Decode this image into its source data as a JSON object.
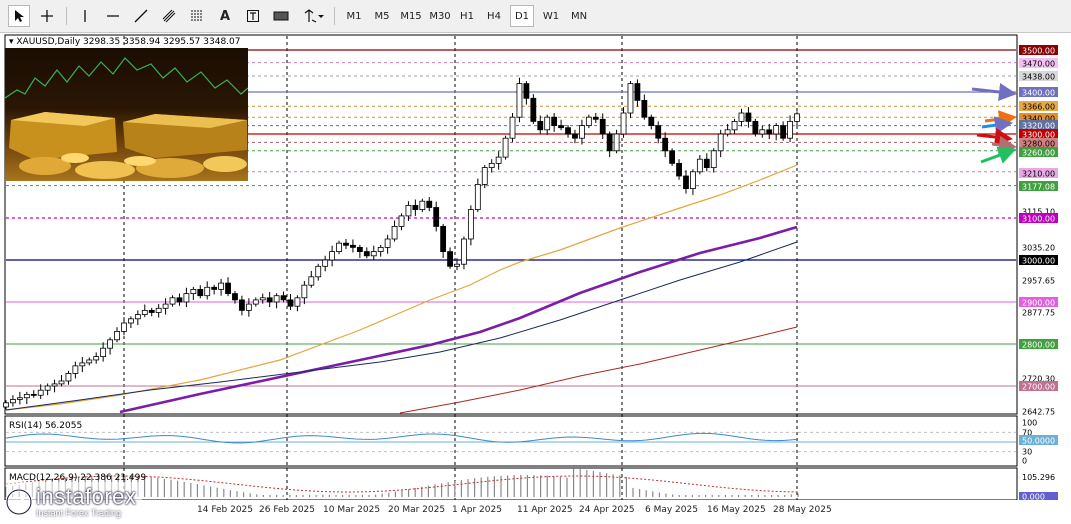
{
  "toolbar": {
    "timeframes": [
      "M1",
      "M5",
      "M15",
      "M30",
      "H1",
      "H4",
      "D1",
      "W1",
      "MN"
    ],
    "selected_timeframe": "D1",
    "text_tool_label": "A"
  },
  "chart": {
    "header": "XAUUSD,Daily  3298.35 3358.94 3295.57 3348.07",
    "price_axis_labels": [
      "3500.00",
      "3470.00",
      "3438.00",
      "3400.00",
      "3366.00",
      "3340.00",
      "3320.00",
      "3300.00",
      "3280.00",
      "3260.00",
      "3210.00",
      "3177.08",
      "3115.10",
      "3100.00",
      "3035.20",
      "3000.00",
      "2957.65",
      "2900.00",
      "2877.75",
      "2800.00",
      "2720.30",
      "2700.00",
      "2642.75"
    ],
    "date_labels": [
      "14 Feb 2025",
      "26 Feb 2025",
      "10 Mar 2025",
      "20 Mar 2025",
      "1 Apr 2025",
      "11 Apr 2025",
      "24 Apr 2025",
      "6 May 2025",
      "16 May 2025",
      "28 May 2025"
    ],
    "colors": {
      "bull_candle": "#ffffff",
      "bear_candle": "#000000",
      "ma_fast": "#e3a73a",
      "ma_mid": "#7a1ea8",
      "ma_slow": "#1a2a5a",
      "ma_long": "#a8281e",
      "resistance": "#8b0000",
      "support_green": "#228b22",
      "magenta": "#c000c0",
      "arrow_blue": "#7070c0",
      "arrow_orange": "#f07010",
      "arrow_red": "#d01010",
      "arrow_green": "#20c060"
    }
  },
  "rsi": {
    "label": "RSI(14) 56.2055",
    "axis_labels": [
      "100",
      "70",
      "50.0000",
      "30",
      "0"
    ]
  },
  "macd": {
    "label": "MACD(12,26,9) 22.386 21.499",
    "axis_labels": [
      "105.296",
      "0.000"
    ]
  },
  "brand": {
    "name": "instaforex",
    "tagline": "Instant Forex Trading"
  },
  "chart_data": {
    "type": "candlestick",
    "x": [
      "2025-02-14",
      "2025-02-26",
      "2025-03-10",
      "2025-03-20",
      "2025-04-01",
      "2025-04-11",
      "2025-04-24",
      "2025-05-06",
      "2025-05-16",
      "2025-05-28"
    ],
    "last_bar": {
      "open": 3298.35,
      "high": 3358.94,
      "low": 3295.57,
      "close": 3348.07
    },
    "horizontal_levels": [
      3500,
      3470,
      3438,
      3400,
      3366,
      3340,
      3320,
      3300,
      3280,
      3260,
      3210,
      3177.08,
      3100,
      3000,
      2900,
      2800,
      2700
    ],
    "rsi_value": 56.2055,
    "macd": {
      "macd": 22.386,
      "signal": 21.499
    }
  }
}
